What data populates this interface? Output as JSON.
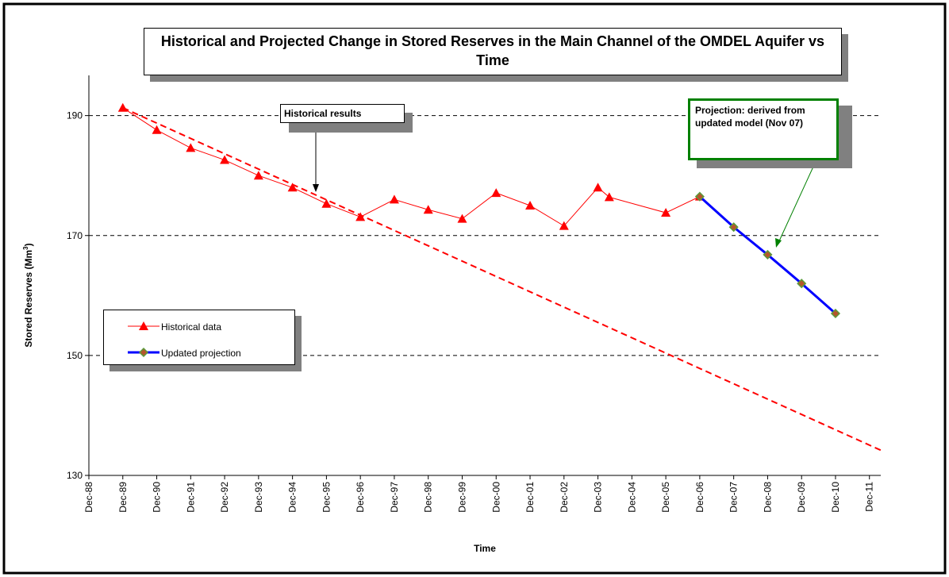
{
  "chart_data": {
    "type": "line",
    "title": "Historical and Projected Change in Stored Reserves in the Main Channel of the OMDEL Aquifer vs Time",
    "xlabel": "Time",
    "ylabel": {
      "text": "Stored Reserves (Mm",
      "sup": "3",
      "tail": ")"
    },
    "ylim": [
      130,
      196.7
    ],
    "yticks": [
      130,
      150,
      170,
      190
    ],
    "xlim": [
      "1988-12",
      "2012-04"
    ],
    "xticks": [
      {
        "value": "1988-12",
        "label": "Dec-88"
      },
      {
        "value": "1989-12",
        "label": "Dec-89"
      },
      {
        "value": "1990-12",
        "label": "Dec-90"
      },
      {
        "value": "1991-12",
        "label": "Dec-91"
      },
      {
        "value": "1992-12",
        "label": "Dec-92"
      },
      {
        "value": "1993-12",
        "label": "Dec-93"
      },
      {
        "value": "1994-12",
        "label": "Dec-94"
      },
      {
        "value": "1995-12",
        "label": "Dec-95"
      },
      {
        "value": "1996-12",
        "label": "Dec-96"
      },
      {
        "value": "1997-12",
        "label": "Dec-97"
      },
      {
        "value": "1998-12",
        "label": "Dec-98"
      },
      {
        "value": "1999-12",
        "label": "Dec-99"
      },
      {
        "value": "2000-12",
        "label": "Dec-00"
      },
      {
        "value": "2001-12",
        "label": "Dec-01"
      },
      {
        "value": "2002-12",
        "label": "Dec-02"
      },
      {
        "value": "2003-12",
        "label": "Dec-03"
      },
      {
        "value": "2004-12",
        "label": "Dec-04"
      },
      {
        "value": "2005-12",
        "label": "Dec-05"
      },
      {
        "value": "2006-12",
        "label": "Dec-06"
      },
      {
        "value": "2007-12",
        "label": "Dec-07"
      },
      {
        "value": "2008-12",
        "label": "Dec-08"
      },
      {
        "value": "2009-12",
        "label": "Dec-09"
      },
      {
        "value": "2010-12",
        "label": "Dec-10"
      },
      {
        "value": "2011-12",
        "label": "Dec-11"
      }
    ],
    "grid": true,
    "series": [
      {
        "name": "Historical data",
        "color": "#ff0000",
        "marker": "triangle",
        "x": [
          "1989-12",
          "1990-12",
          "1991-12",
          "1992-12",
          "1993-12",
          "1994-12",
          "1995-12",
          "1996-12",
          "1997-12",
          "1998-12",
          "1999-12",
          "2000-12",
          "2001-12",
          "2002-12",
          "2003-12",
          "2004-04",
          "2005-12",
          "2006-12"
        ],
        "values": [
          191.3,
          187.6,
          184.6,
          182.6,
          180.0,
          178.0,
          175.3,
          173.1,
          176.0,
          174.3,
          172.8,
          177.1,
          175.0,
          171.6,
          178.0,
          176.4,
          173.8,
          176.5
        ]
      },
      {
        "name": "Updated projection",
        "color": "#0000ff",
        "marker": "diamond",
        "x": [
          "2006-12",
          "2007-12",
          "2008-12",
          "2009-12",
          "2010-12"
        ],
        "values": [
          176.5,
          171.4,
          166.8,
          162.0,
          157.0
        ]
      },
      {
        "color": "#ff0000",
        "dashed": true,
        "x": [
          "1989-12",
          "2012-04"
        ],
        "values": [
          191.3,
          134.2
        ]
      }
    ],
    "annotations": [
      {
        "text": "Historical results",
        "color": "#000000"
      },
      {
        "text": "Projection: derived from updated model (Nov 07)",
        "color": "#008000"
      }
    ]
  }
}
